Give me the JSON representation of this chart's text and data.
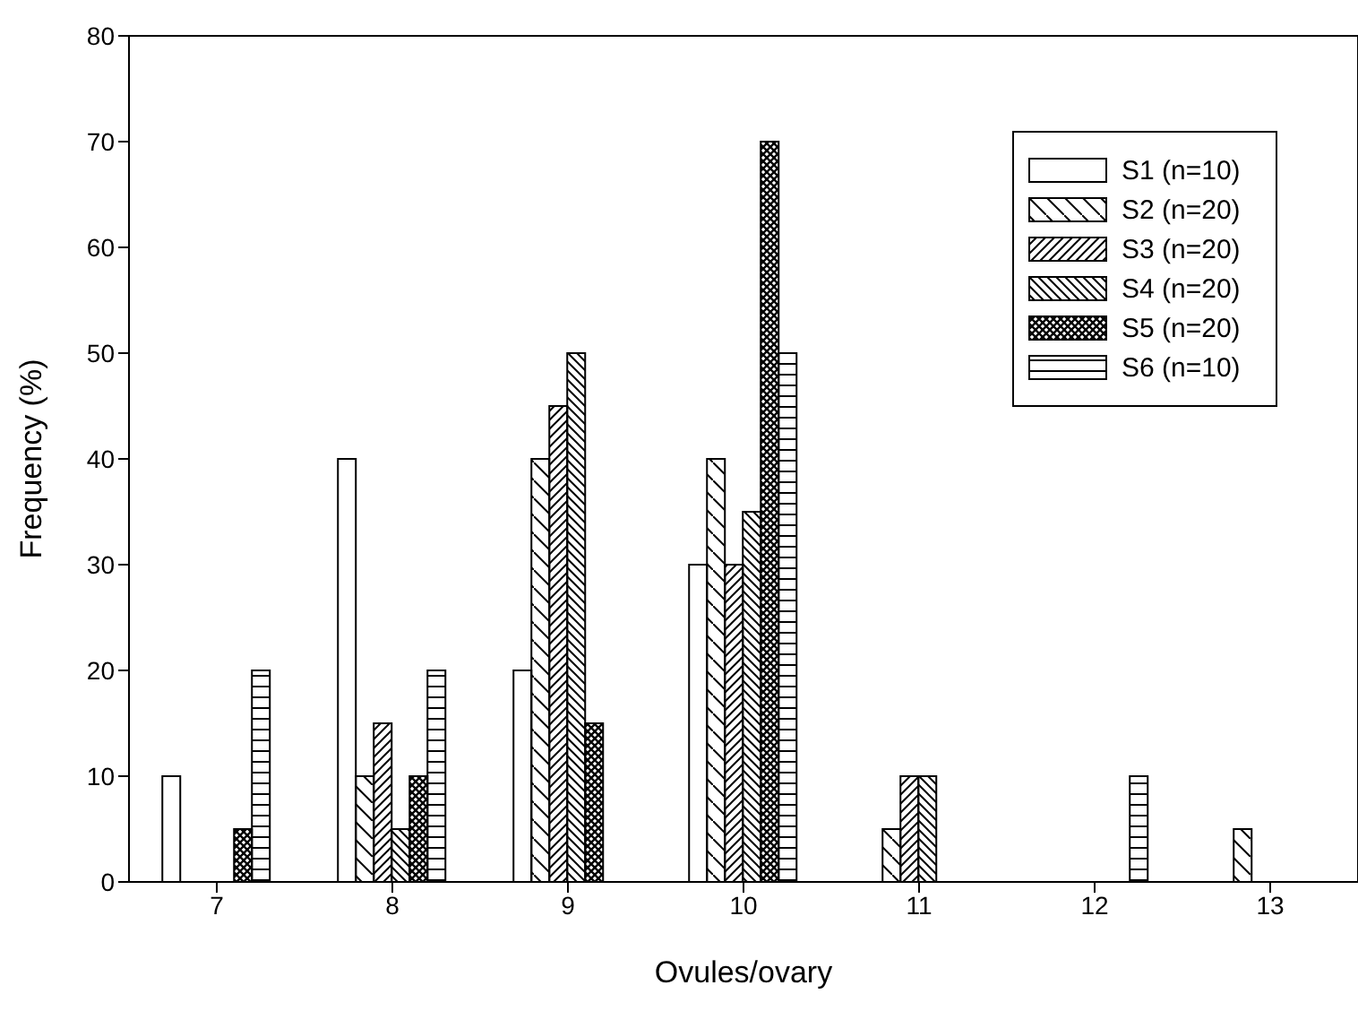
{
  "chart_data": {
    "type": "bar",
    "xlabel": "Ovules/ovary",
    "ylabel": "Frequency (%)",
    "categories": [
      "7",
      "8",
      "9",
      "10",
      "11",
      "12",
      "13"
    ],
    "series": [
      {
        "name": "S1 (n=10)",
        "color": "#000000",
        "values": [
          10,
          40,
          20,
          30,
          null,
          null,
          null
        ]
      },
      {
        "name": "S2 (n=20)",
        "color": "#000000",
        "values": [
          null,
          10,
          40,
          40,
          5,
          null,
          5
        ]
      },
      {
        "name": "S3 (n=20)",
        "color": "#000000",
        "values": [
          null,
          15,
          45,
          30,
          10,
          null,
          null
        ]
      },
      {
        "name": "S4 (n=20)",
        "color": "#000000",
        "values": [
          null,
          5,
          50,
          35,
          10,
          null,
          null
        ]
      },
      {
        "name": "S5 (n=20)",
        "color": "#000000",
        "values": [
          5,
          10,
          15,
          70,
          null,
          null,
          null
        ]
      },
      {
        "name": "S6 (n=10)",
        "color": "#000000",
        "values": [
          20,
          20,
          null,
          50,
          null,
          10,
          null
        ]
      }
    ],
    "ylim": [
      0,
      80
    ],
    "yticks": [
      0,
      10,
      20,
      30,
      40,
      50,
      60,
      70,
      80
    ],
    "grid": false,
    "legend": "top right"
  }
}
